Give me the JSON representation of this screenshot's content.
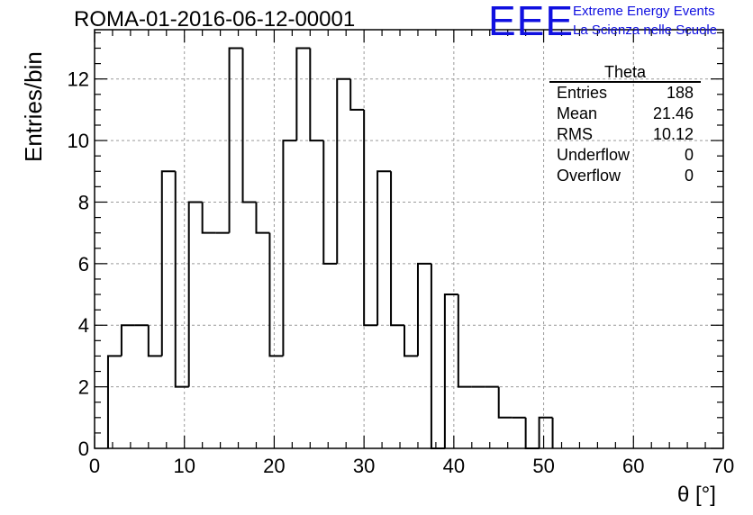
{
  "header": {
    "title": "ROMA-01-2016-06-12-00001",
    "logo_text": "EEE",
    "logo_line1": "Extreme Energy Events",
    "logo_line2": "La Scienza nelle Scuole"
  },
  "stats_box": {
    "title": "Theta",
    "rows": [
      {
        "label": "Entries",
        "value": "188"
      },
      {
        "label": "Mean",
        "value": "21.46"
      },
      {
        "label": "RMS",
        "value": "10.12"
      },
      {
        "label": "Underflow",
        "value": "0"
      },
      {
        "label": "Overflow",
        "value": "0"
      }
    ]
  },
  "chart_data": {
    "type": "bar",
    "style": "step-histogram",
    "title": "ROMA-01-2016-06-12-00001",
    "xlabel": "θ [°]",
    "ylabel": "Entries/bin",
    "xlim": [
      0,
      70
    ],
    "ylim": [
      0,
      13.6
    ],
    "xticks": [
      "0",
      "10",
      "20",
      "30",
      "40",
      "50",
      "60",
      "70"
    ],
    "yticks": [
      "0",
      "2",
      "4",
      "6",
      "8",
      "10",
      "12"
    ],
    "grid": true,
    "bin_width": 1.5,
    "bin_start": 1.5,
    "values": [
      3,
      4,
      4,
      3,
      9,
      2,
      8,
      7,
      7,
      13,
      8,
      7,
      3,
      10,
      13,
      10,
      6,
      12,
      11,
      4,
      9,
      4,
      3,
      6,
      0,
      5,
      2,
      2,
      2,
      1,
      1,
      0,
      1
    ],
    "line_color": "#000000",
    "grid_color": "#9a9a9a",
    "logo_color": "#1010e0"
  }
}
